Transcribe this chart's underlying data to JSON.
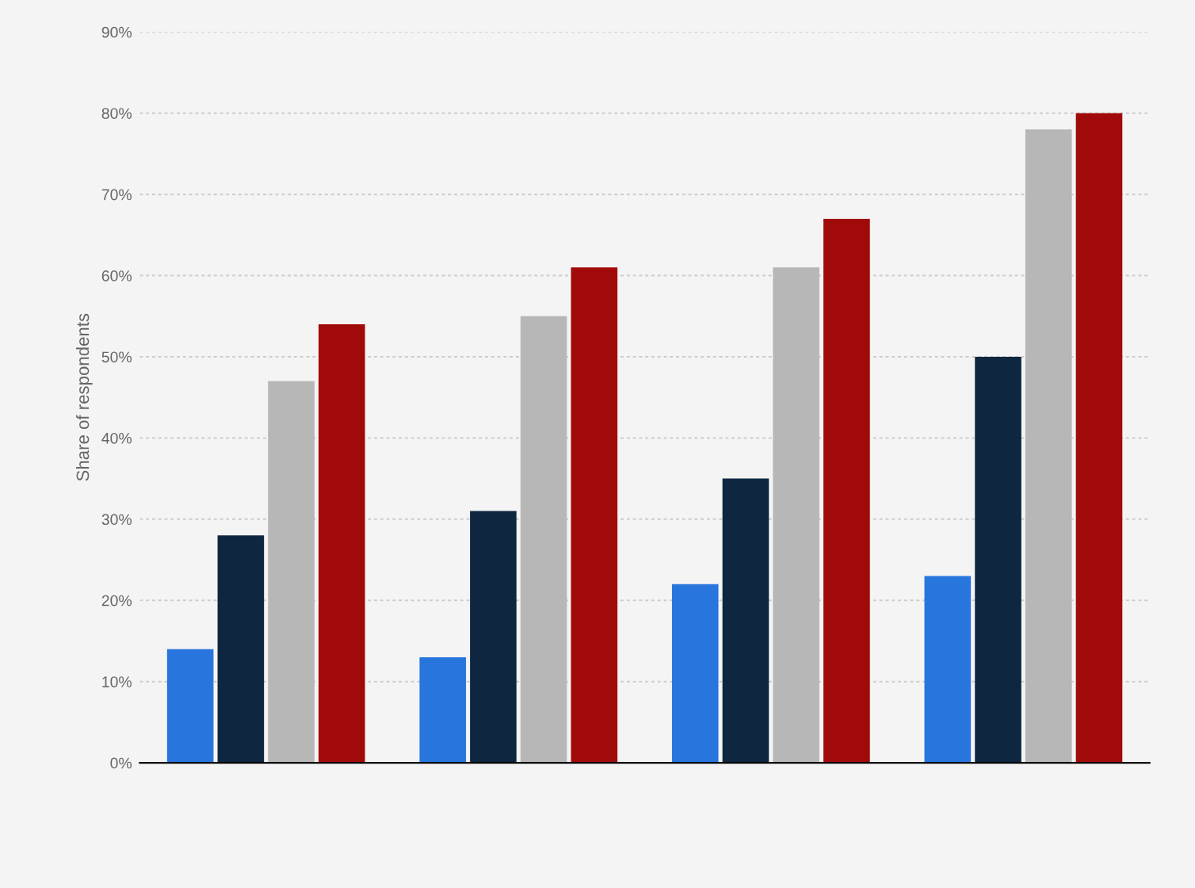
{
  "chart_data": {
    "type": "bar",
    "ylabel": "Share of respondents",
    "categories": [
      null,
      null,
      null,
      null
    ],
    "series": [
      {
        "color": "#2876dd",
        "values": [
          14,
          13,
          22,
          23
        ]
      },
      {
        "color": "#0f2640",
        "values": [
          28,
          31,
          35,
          50
        ]
      },
      {
        "color": "#b7b7b7",
        "values": [
          47,
          55,
          61,
          78
        ]
      },
      {
        "color": "#a10a0a",
        "values": [
          54,
          61,
          67,
          80
        ]
      }
    ],
    "ylim": [
      0,
      90
    ],
    "yticks": [
      {
        "value": 0,
        "label": "0%"
      },
      {
        "value": 10,
        "label": "10%"
      },
      {
        "value": 20,
        "label": "20%"
      },
      {
        "value": 30,
        "label": "30%"
      },
      {
        "value": 40,
        "label": "40%"
      },
      {
        "value": 50,
        "label": "50%"
      },
      {
        "value": 60,
        "label": "60%"
      },
      {
        "value": 70,
        "label": "70%"
      },
      {
        "value": 80,
        "label": "80%"
      },
      {
        "value": 90,
        "label": "90%"
      }
    ],
    "grid": "y",
    "legend": false
  }
}
